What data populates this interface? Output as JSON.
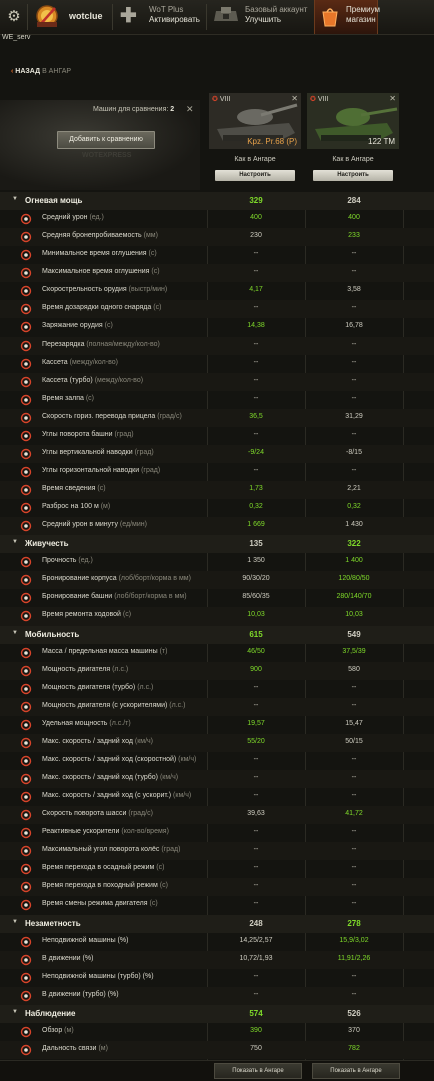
{
  "header": {
    "username": "wotclue",
    "wotplus_title": "WoT Plus",
    "wotplus_action": "Активировать",
    "basic_title": "Базовый аккаунт",
    "basic_action": "Улучшить",
    "premium_l1": "Премиум",
    "premium_l2": "магазин"
  },
  "server": "WE_serv",
  "nav": {
    "back_label": "НАЗАД",
    "back_target": "В АНГАР"
  },
  "compare": {
    "count_label": "Машин для сравнения:",
    "count": "2",
    "add_button": "Добавить к сравнению",
    "watermark": "WOTEXPRESS"
  },
  "vehicles": [
    {
      "tier": "VIII",
      "name": "Kpz. Pr.68 (P)",
      "name_color": "#e8a24a",
      "as_in_hangar": "Как в Ангаре",
      "configure": "Настроить",
      "show_in_hangar": "Показать в Ангаре"
    },
    {
      "tier": "VIII",
      "name": "122 TM",
      "name_color": "#e8e6da",
      "as_in_hangar": "Как в Ангаре",
      "configure": "Настроить",
      "show_in_hangar": "Показать в Ангаре"
    }
  ],
  "rows": [
    {
      "type": "section",
      "label": "Огневая мощь",
      "v1": "329",
      "v2": "284",
      "c1": "good",
      "c2": "neutral"
    },
    {
      "label": "Средний урон",
      "unit": "(ед.)",
      "v1": "400",
      "v2": "400",
      "c1": "good",
      "c2": "good",
      "icon": "damage-icon"
    },
    {
      "label": "Средняя бронепробиваемость",
      "unit": "(мм)",
      "v1": "230",
      "v2": "233",
      "c1": "neutral",
      "c2": "good",
      "icon": "penetration-icon"
    },
    {
      "label": "Минимальное время оглушения",
      "unit": "(с)",
      "v1": "--",
      "v2": "--",
      "c1": "neutral",
      "c2": "neutral",
      "icon": "stun-min-icon"
    },
    {
      "label": "Максимальное время оглушения",
      "unit": "(с)",
      "v1": "--",
      "v2": "--",
      "c1": "neutral",
      "c2": "neutral",
      "icon": "stun-max-icon"
    },
    {
      "label": "Скорострельность орудия",
      "unit": "(выстр/мин)",
      "v1": "4,17",
      "v2": "3,58",
      "c1": "good",
      "c2": "neutral",
      "icon": "rate-of-fire-icon"
    },
    {
      "label": "Время дозарядки одного снаряда",
      "unit": "(с)",
      "v1": "--",
      "v2": "--",
      "c1": "neutral",
      "c2": "neutral",
      "icon": "intra-clip-icon"
    },
    {
      "label": "Заряжание орудия",
      "unit": "(с)",
      "v1": "14,38",
      "v2": "16,78",
      "c1": "good",
      "c2": "neutral",
      "icon": "reload-icon"
    },
    {
      "label": "Перезарядка",
      "unit": "(полная/между/кол-во)",
      "v1": "--",
      "v2": "--",
      "c1": "neutral",
      "c2": "neutral",
      "icon": "autoreload-icon"
    },
    {
      "label": "Кассета",
      "unit": "(между/кол-во)",
      "v1": "--",
      "v2": "--",
      "c1": "neutral",
      "c2": "neutral",
      "icon": "clip-icon"
    },
    {
      "label": "Кассета (турбо)",
      "unit": "(между/кол-во)",
      "v1": "--",
      "v2": "--",
      "c1": "neutral",
      "c2": "neutral",
      "icon": "clip-turbo-icon"
    },
    {
      "label": "Время залпа",
      "unit": "(с)",
      "v1": "--",
      "v2": "--",
      "c1": "neutral",
      "c2": "neutral",
      "icon": "salvo-time-icon"
    },
    {
      "label": "Скорость гориз. перевода прицела",
      "unit": "(град/с)",
      "v1": "36,5",
      "v2": "31,29",
      "c1": "good",
      "c2": "neutral",
      "icon": "traverse-icon"
    },
    {
      "label": "Углы поворота башни",
      "unit": "(град)",
      "v1": "--",
      "v2": "--",
      "c1": "neutral",
      "c2": "neutral",
      "icon": "turret-angle-icon"
    },
    {
      "label": "Углы вертикальной наводки",
      "unit": "(град)",
      "v1": "-9/24",
      "v2": "-8/15",
      "c1": "good",
      "c2": "neutral",
      "icon": "elevation-icon"
    },
    {
      "label": "Углы горизонтальной наводки",
      "unit": "(град)",
      "v1": "--",
      "v2": "--",
      "c1": "neutral",
      "c2": "neutral",
      "icon": "gun-arc-icon"
    },
    {
      "label": "Время сведения",
      "unit": "(с)",
      "v1": "1,73",
      "v2": "2,21",
      "c1": "good",
      "c2": "neutral",
      "icon": "aim-time-icon"
    },
    {
      "label": "Разброс на 100 м",
      "unit": "(м)",
      "v1": "0,32",
      "v2": "0,32",
      "c1": "good",
      "c2": "good",
      "icon": "dispersion-icon"
    },
    {
      "label": "Средний урон в минуту",
      "unit": "(ед/мин)",
      "v1": "1 669",
      "v2": "1 430",
      "c1": "good",
      "c2": "neutral",
      "icon": "dpm-icon"
    },
    {
      "type": "section",
      "label": "Живучесть",
      "v1": "135",
      "v2": "322",
      "c1": "neutral",
      "c2": "good"
    },
    {
      "label": "Прочность",
      "unit": "(ед.)",
      "v1": "1 350",
      "v2": "1 400",
      "c1": "neutral",
      "c2": "good",
      "icon": "hitpoints-icon"
    },
    {
      "label": "Бронирование корпуса",
      "unit": "(лоб/борт/корма в мм)",
      "v1": "90/30/20",
      "v2": "120/80/50",
      "c1": "neutral",
      "c2": "good",
      "icon": "hull-armor-icon"
    },
    {
      "label": "Бронирование башни",
      "unit": "(лоб/борт/корма в мм)",
      "v1": "85/60/35",
      "v2": "280/140/70",
      "c1": "neutral",
      "c2": "good",
      "icon": "turret-armor-icon"
    },
    {
      "label": "Время ремонта ходовой",
      "unit": "(с)",
      "v1": "10,03",
      "v2": "10,03",
      "c1": "good",
      "c2": "good",
      "icon": "repair-icon"
    },
    {
      "type": "section",
      "label": "Мобильность",
      "v1": "615",
      "v2": "549",
      "c1": "good",
      "c2": "neutral"
    },
    {
      "label": "Масса / предельная масса машины",
      "unit": "(т)",
      "v1": "46/50",
      "v2": "37,5/39",
      "c1": "good",
      "c2": "good",
      "icon": "weight-icon"
    },
    {
      "label": "Мощность двигателя",
      "unit": "(л.с.)",
      "v1": "900",
      "v2": "580",
      "c1": "good",
      "c2": "neutral",
      "icon": "engine-icon"
    },
    {
      "label": "Мощность двигателя (турбо)",
      "unit": "(л.с.)",
      "v1": "--",
      "v2": "--",
      "c1": "neutral",
      "c2": "neutral",
      "icon": "engine-turbo-icon"
    },
    {
      "label": "Мощность двигателя (с ускорителями)",
      "unit": "(л.с.)",
      "v1": "--",
      "v2": "--",
      "c1": "neutral",
      "c2": "neutral",
      "icon": "engine-boost-icon"
    },
    {
      "label": "Удельная мощность",
      "unit": "(л.с./т)",
      "v1": "19,57",
      "v2": "15,47",
      "c1": "good",
      "c2": "neutral",
      "icon": "power-weight-icon"
    },
    {
      "label": "Макс. скорость / задний ход",
      "unit": "(км/ч)",
      "v1": "55/20",
      "v2": "50/15",
      "c1": "good",
      "c2": "neutral",
      "icon": "speed-icon"
    },
    {
      "label": "Макс. скорость / задний ход (скоростной)",
      "unit": "(км/ч)",
      "v1": "--",
      "v2": "--",
      "c1": "neutral",
      "c2": "neutral",
      "icon": "speed-fast-icon"
    },
    {
      "label": "Макс. скорость / задний ход (турбо)",
      "unit": "(км/ч)",
      "v1": "--",
      "v2": "--",
      "c1": "neutral",
      "c2": "neutral",
      "icon": "speed-turbo-icon"
    },
    {
      "label": "Макс. скорость / задний ход (с ускорит.)",
      "unit": "(км/ч)",
      "v1": "--",
      "v2": "--",
      "c1": "neutral",
      "c2": "neutral",
      "icon": "speed-boost-icon"
    },
    {
      "label": "Скорость поворота шасси",
      "unit": "(град/с)",
      "v1": "39,63",
      "v2": "41,72",
      "c1": "neutral",
      "c2": "good",
      "icon": "hull-traverse-icon"
    },
    {
      "label": "Реактивные ускорители",
      "unit": "(кол-во/время)",
      "v1": "--",
      "v2": "--",
      "c1": "neutral",
      "c2": "neutral",
      "icon": "rocket-icon"
    },
    {
      "label": "Максимальный угол поворота колёс",
      "unit": "(град)",
      "v1": "--",
      "v2": "--",
      "c1": "neutral",
      "c2": "neutral",
      "icon": "wheel-angle-icon"
    },
    {
      "label": "Время перехода в осадный режим",
      "unit": "(с)",
      "v1": "--",
      "v2": "--",
      "c1": "neutral",
      "c2": "neutral",
      "icon": "siege-mode-icon"
    },
    {
      "label": "Время перехода в походный режим",
      "unit": "(с)",
      "v1": "--",
      "v2": "--",
      "c1": "neutral",
      "c2": "neutral",
      "icon": "travel-mode-icon"
    },
    {
      "label": "Время смены режима двигателя",
      "unit": "(с)",
      "v1": "--",
      "v2": "--",
      "c1": "neutral",
      "c2": "neutral",
      "icon": "engine-mode-icon"
    },
    {
      "type": "section",
      "label": "Незаметность",
      "v1": "248",
      "v2": "278",
      "c1": "neutral",
      "c2": "good"
    },
    {
      "label": "Неподвижной машины (%)",
      "unit": "",
      "v1": "14,25/2,57",
      "v2": "15,9/3,02",
      "c1": "neutral",
      "c2": "good",
      "icon": "camo-still-icon"
    },
    {
      "label": "В движении (%)",
      "unit": "",
      "v1": "10,72/1,93",
      "v2": "11,91/2,26",
      "c1": "neutral",
      "c2": "good",
      "icon": "camo-moving-icon"
    },
    {
      "label": "Неподвижной машины (турбо) (%)",
      "unit": "",
      "v1": "--",
      "v2": "--",
      "c1": "neutral",
      "c2": "neutral",
      "icon": "camo-still-turbo-icon"
    },
    {
      "label": "В движении (турбо) (%)",
      "unit": "",
      "v1": "--",
      "v2": "--",
      "c1": "neutral",
      "c2": "neutral",
      "icon": "camo-moving-turbo-icon"
    },
    {
      "type": "section",
      "label": "Наблюдение",
      "v1": "574",
      "v2": "526",
      "c1": "good",
      "c2": "neutral"
    },
    {
      "label": "Обзор",
      "unit": "(м)",
      "v1": "390",
      "v2": "370",
      "c1": "good",
      "c2": "neutral",
      "icon": "view-range-icon"
    },
    {
      "label": "Дальность связи",
      "unit": "(м)",
      "v1": "750",
      "v2": "782",
      "c1": "neutral",
      "c2": "good",
      "icon": "radio-range-icon"
    }
  ],
  "colors": {
    "accent": "#e06a2a",
    "good": "#7fda2a",
    "section_arrow": "#c8c6b8",
    "icon_red": "#d8442a"
  }
}
